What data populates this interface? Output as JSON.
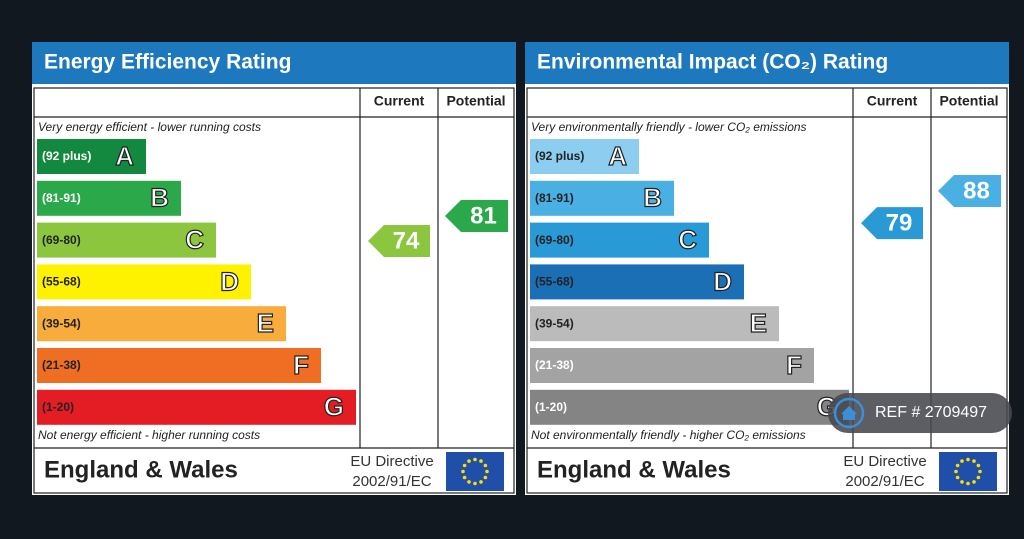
{
  "panels": [
    {
      "title": "Energy Efficiency Rating",
      "header_current": "Current",
      "header_potential": "Potential",
      "top_note": "Very energy efficient - lower running costs",
      "bottom_note": "Not energy efficient - higher running costs",
      "bands": [
        {
          "range": "(92 plus)",
          "letter": "A",
          "color": "#12893f",
          "label_color": "#ffffff"
        },
        {
          "range": "(81-91)",
          "letter": "B",
          "color": "#2ba84a",
          "label_color": "#ffffff"
        },
        {
          "range": "(69-80)",
          "letter": "C",
          "color": "#8cc63e",
          "label_color": "#222222"
        },
        {
          "range": "(55-68)",
          "letter": "D",
          "color": "#fff200",
          "label_color": "#222222"
        },
        {
          "range": "(39-54)",
          "letter": "E",
          "color": "#f7ac3b",
          "label_color": "#222222"
        },
        {
          "range": "(21-38)",
          "letter": "F",
          "color": "#ef6e24",
          "label_color": "#222222"
        },
        {
          "range": "(1-20)",
          "letter": "G",
          "color": "#e31d23",
          "label_color": "#222222"
        }
      ],
      "current": {
        "value": 74,
        "color": "#8cc63e"
      },
      "potential": {
        "value": 81,
        "color": "#2ba84a"
      },
      "region": "England & Wales",
      "directive_line1": "EU Directive",
      "directive_line2": "2002/91/EC"
    },
    {
      "title": "Environmental Impact (CO₂) Rating",
      "header_current": "Current",
      "header_potential": "Potential",
      "top_note": "Very environmentally friendly - lower CO₂ emissions",
      "bottom_note": "Not environmentally friendly - higher CO₂ emissions",
      "bands": [
        {
          "range": "(92 plus)",
          "letter": "A",
          "color": "#8ccdf0",
          "label_color": "#222222"
        },
        {
          "range": "(81-91)",
          "letter": "B",
          "color": "#4aafe3",
          "label_color": "#222222"
        },
        {
          "range": "(69-80)",
          "letter": "C",
          "color": "#2a9ad6",
          "label_color": "#222222"
        },
        {
          "range": "(55-68)",
          "letter": "D",
          "color": "#1a6fb5",
          "label_color": "#222222"
        },
        {
          "range": "(39-54)",
          "letter": "E",
          "color": "#bbbbbb",
          "label_color": "#222222"
        },
        {
          "range": "(21-38)",
          "letter": "F",
          "color": "#a3a3a3",
          "label_color": "#ffffff"
        },
        {
          "range": "(1-20)",
          "letter": "G",
          "color": "#848484",
          "label_color": "#ffffff"
        }
      ],
      "current": {
        "value": 79,
        "color": "#2a9ad6"
      },
      "potential": {
        "value": 88,
        "color": "#4aafe3"
      },
      "region": "England & Wales",
      "directive_line1": "EU Directive",
      "directive_line2": "2002/91/EC"
    }
  ],
  "ref": "REF # 2709497"
}
